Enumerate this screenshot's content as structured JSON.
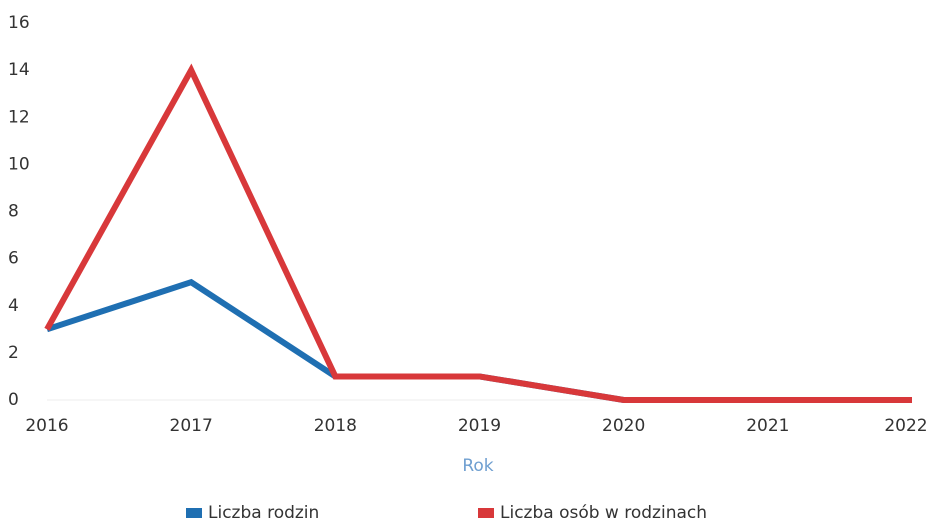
{
  "chart_data": {
    "type": "line",
    "categories": [
      "2016",
      "2017",
      "2018",
      "2019",
      "2020",
      "2021",
      "2022"
    ],
    "series": [
      {
        "name": "Liczba rodzin",
        "color": "#1f6fb2",
        "values": [
          3,
          5,
          1,
          1,
          0,
          0,
          0
        ]
      },
      {
        "name": "Liczba osób w rodzinach",
        "color": "#d8383a",
        "values": [
          3,
          14,
          1,
          1,
          0,
          0,
          0
        ]
      }
    ],
    "x_label": "Rok",
    "ylim": [
      0,
      16
    ],
    "yticks": [
      0,
      2,
      4,
      6,
      8,
      10,
      12,
      14,
      16
    ],
    "grid": false,
    "legend": "bottom"
  }
}
